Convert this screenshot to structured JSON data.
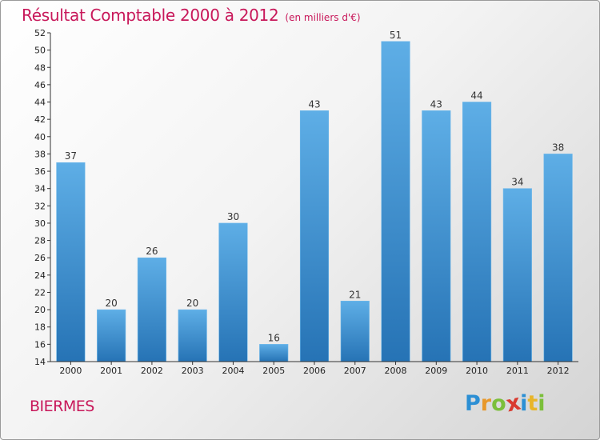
{
  "chart_data": {
    "type": "bar",
    "title": "Résultat Comptable 2000 à 2012",
    "subtitle": "(en milliers d'€)",
    "categories": [
      "2000",
      "2001",
      "2002",
      "2003",
      "2004",
      "2005",
      "2006",
      "2007",
      "2008",
      "2009",
      "2010",
      "2011",
      "2012"
    ],
    "values": [
      37,
      20,
      26,
      20,
      30,
      16,
      43,
      21,
      51,
      43,
      44,
      34,
      38
    ],
    "xlabel": "",
    "ylabel": "",
    "ylim": [
      14,
      52
    ],
    "ytick_step": 2,
    "grid": false,
    "bar_color": "#3d8fd1",
    "bar_color_light": "#5eaee6",
    "bar_color_dark": "#2673b5"
  },
  "footer": {
    "commune": "BIERMES",
    "logo_letters": [
      {
        "char": "P",
        "color": "#2c8fd4"
      },
      {
        "char": "r",
        "color": "#e8982a"
      },
      {
        "char": "o",
        "color": "#7bbf3a"
      },
      {
        "char": "x",
        "color": "#d93a2f"
      },
      {
        "char": "i",
        "color": "#2c8fd4"
      },
      {
        "char": "t",
        "color": "#e8b52a"
      },
      {
        "char": "i",
        "color": "#7bbf3a"
      }
    ]
  },
  "colors": {
    "title": "#c8185a",
    "axis": "#333333"
  }
}
